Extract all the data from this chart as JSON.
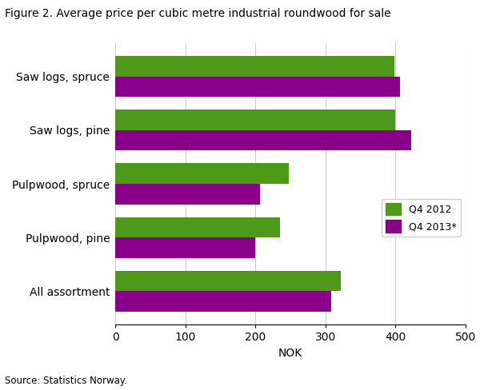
{
  "title": "Figure 2. Average price per cubic metre industrial roundwood for sale",
  "categories": [
    "Saw logs, spruce",
    "Saw logs, pine",
    "Pulpwood, spruce",
    "Pulpwood, pine",
    "All assortment"
  ],
  "q4_2012": [
    398,
    400,
    248,
    235,
    322
  ],
  "q4_2013": [
    407,
    422,
    207,
    200,
    308
  ],
  "color_2012": "#4d9a1a",
  "color_2013": "#8b008b",
  "xlabel": "NOK",
  "xlim": [
    0,
    500
  ],
  "xticks": [
    0,
    100,
    200,
    300,
    400,
    500
  ],
  "legend_labels": [
    "Q4 2012",
    "Q4 2013*"
  ],
  "source": "Source: Statistics Norway.",
  "background_color": "#ffffff",
  "grid_color": "#cccccc"
}
